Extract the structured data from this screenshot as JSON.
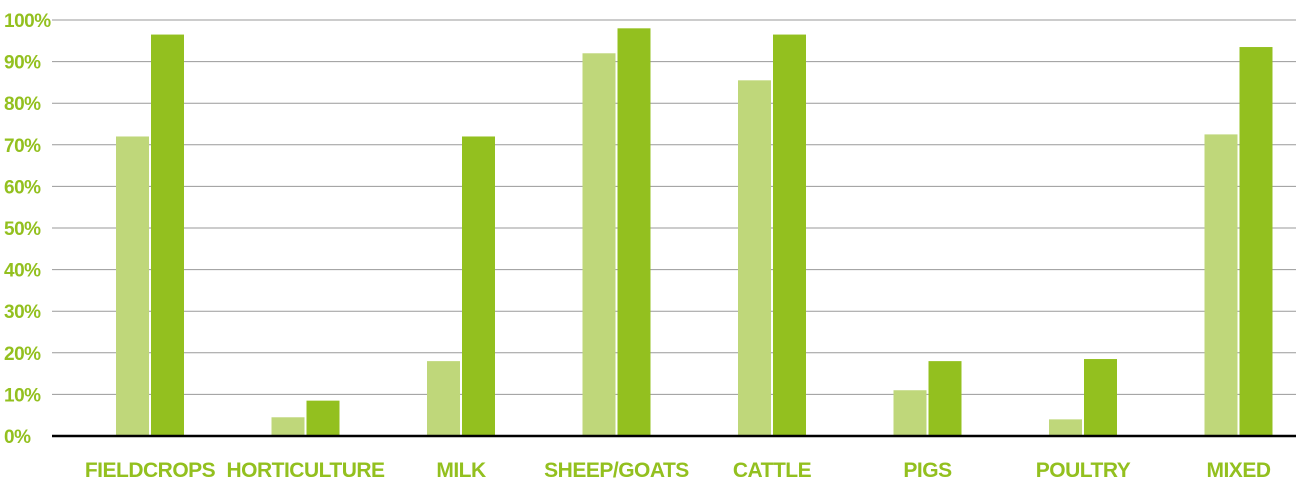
{
  "chart_data": {
    "type": "bar",
    "title": "",
    "xlabel": "",
    "ylabel": "",
    "ylim": [
      0,
      100
    ],
    "yticks": [
      "0%",
      "10%",
      "20%",
      "30%",
      "40%",
      "50%",
      "60%",
      "70%",
      "80%",
      "90%",
      "100%"
    ],
    "categories": [
      "FIELDCROPS",
      "HORTICULTURE",
      "MILK",
      "SHEEP/GOATS",
      "CATTLE",
      "PIGS",
      "POULTRY",
      "MIXED"
    ],
    "series": [
      {
        "color": "#bfd77a",
        "values": [
          72,
          4.5,
          18,
          92,
          85.5,
          11,
          4,
          72.5
        ]
      },
      {
        "color": "#93c01f",
        "values": [
          96.5,
          8.5,
          72,
          98,
          96.5,
          18,
          18.5,
          93.5
        ]
      }
    ],
    "grid": true,
    "legend": "none",
    "label_color": "#93c01f"
  }
}
